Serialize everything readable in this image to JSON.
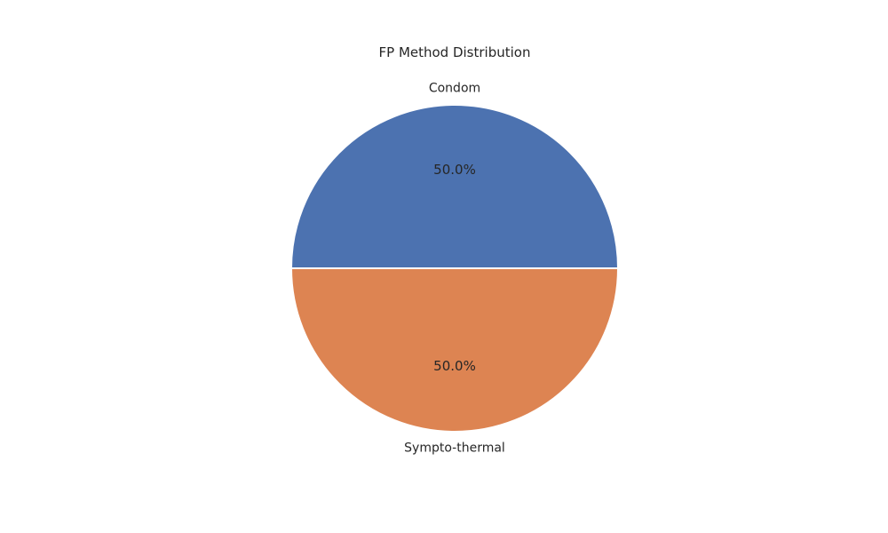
{
  "chart_data": {
    "type": "pie",
    "title": "FP Method Distribution",
    "slices": [
      {
        "label": "Condom",
        "value": 50.0,
        "pct_label": "50.0%",
        "color": "#4c72b0"
      },
      {
        "label": "Sympto-thermal",
        "value": 50.0,
        "pct_label": "50.0%",
        "color": "#dd8452"
      }
    ]
  }
}
